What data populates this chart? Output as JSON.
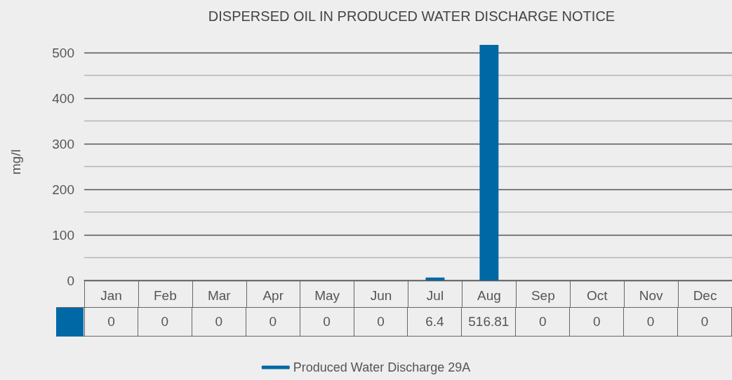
{
  "chart_data": {
    "type": "bar",
    "title": "DISPERSED OIL IN PRODUCED WATER DISCHARGE NOTICE",
    "ylabel": "mg/l",
    "categories": [
      "Jan",
      "Feb",
      "Mar",
      "Apr",
      "May",
      "Jun",
      "Jul",
      "Aug",
      "Sep",
      "Oct",
      "Nov",
      "Dec"
    ],
    "series": [
      {
        "name": "Produced Water Discharge 29A",
        "color": "#0068a5",
        "values": [
          0,
          0,
          0,
          0,
          0,
          0,
          6.4,
          516.81,
          0,
          0,
          0,
          0
        ]
      }
    ],
    "ylim": [
      0,
      520
    ],
    "yticks": [
      0,
      {
        "value": 50,
        "label": null
      },
      100,
      {
        "value": 150,
        "label": null
      },
      200,
      {
        "value": 250,
        "label": null
      },
      300,
      {
        "value": 350,
        "label": null
      },
      400,
      {
        "value": 450,
        "label": null
      },
      500
    ],
    "grid": "y",
    "legend": "bottom",
    "data_labels": true
  }
}
